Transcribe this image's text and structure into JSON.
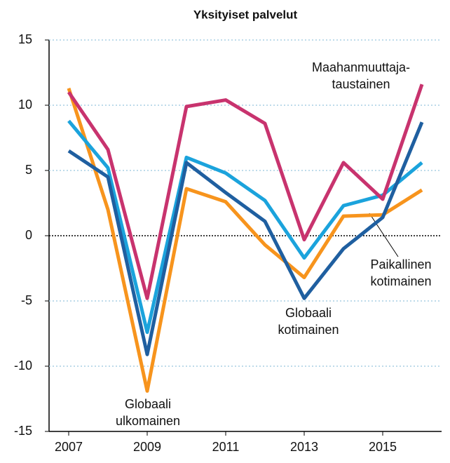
{
  "chart_data": {
    "type": "line",
    "title": "Yksityiset palvelut",
    "x": [
      2007,
      2008,
      2009,
      2010,
      2011,
      2012,
      2013,
      2014,
      2015,
      2016
    ],
    "xlim": [
      2006.5,
      2016.5
    ],
    "xticks": [
      2007,
      2009,
      2011,
      2013,
      2015
    ],
    "ylim": [
      -15,
      15
    ],
    "yticks": [
      -15,
      -10,
      -5,
      0,
      5,
      10,
      15
    ],
    "grid": true,
    "series": [
      {
        "label": [
          "Globaali",
          "ulkomainen"
        ],
        "color": "#f7941d",
        "values": [
          11.3,
          2.0,
          -11.9,
          3.6,
          2.6,
          -0.7,
          -3.2,
          1.5,
          1.6,
          3.5
        ]
      },
      {
        "label": [
          "Paikallinen",
          "kotimainen"
        ],
        "color": "#1ba3dc",
        "values": [
          8.8,
          5.2,
          -7.4,
          6.0,
          4.8,
          2.7,
          -1.7,
          2.3,
          3.1,
          5.6
        ]
      },
      {
        "label": [
          "Globaali",
          "kotimainen"
        ],
        "color": "#1f5fa0",
        "values": [
          6.5,
          4.5,
          -9.1,
          5.6,
          3.3,
          1.1,
          -4.8,
          -1.0,
          1.4,
          8.7
        ]
      },
      {
        "label": [
          "Maahanmuuttaja-",
          "taustainen"
        ],
        "color": "#c8336e",
        "values": [
          11.0,
          6.6,
          -4.8,
          9.9,
          10.4,
          8.6,
          -0.3,
          5.6,
          2.8,
          11.6
        ]
      }
    ]
  }
}
